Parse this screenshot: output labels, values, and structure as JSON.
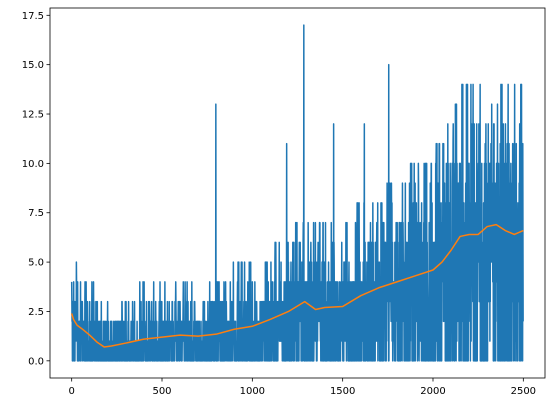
{
  "chart_data": {
    "type": "line",
    "title": "",
    "xlabel": "",
    "ylabel": "",
    "xlim": [
      -120,
      2620
    ],
    "ylim": [
      -0.87,
      17.87
    ],
    "x_ticks": [
      0,
      500,
      1000,
      1500,
      2000,
      2500
    ],
    "x_tick_labels": [
      "0",
      "500",
      "1000",
      "1500",
      "2000",
      "2500"
    ],
    "y_ticks": [
      0.0,
      2.5,
      5.0,
      7.5,
      10.0,
      12.5,
      15.0,
      17.5
    ],
    "y_tick_labels": [
      "0.0",
      "2.5",
      "5.0",
      "7.5",
      "10.0",
      "12.5",
      "15.0",
      "17.5"
    ],
    "grid": false,
    "legend": "none",
    "series": [
      {
        "color": "#1f77b4",
        "description": "raw per-episode values (integers), 2500 points, max 17 near x≈1285",
        "peaks": [
          [
            798,
            13
          ],
          [
            1285,
            17
          ],
          [
            1190,
            11
          ],
          [
            1450,
            12
          ],
          [
            1755,
            15
          ],
          [
            1620,
            12
          ],
          [
            2130,
            13
          ],
          [
            2160,
            14
          ],
          [
            2325,
            13
          ],
          [
            2490,
            14
          ]
        ]
      },
      {
        "color": "#ff7f0e",
        "description": "moving average",
        "x": [
          0,
          10,
          30,
          60,
          100,
          140,
          180,
          220,
          300,
          400,
          500,
          600,
          700,
          800,
          900,
          1000,
          1100,
          1200,
          1290,
          1350,
          1400,
          1500,
          1600,
          1700,
          1800,
          1900,
          2000,
          2050,
          2100,
          2150,
          2200,
          2250,
          2300,
          2350,
          2400,
          2450,
          2500
        ],
        "values": [
          2.4,
          2.1,
          1.8,
          1.6,
          1.3,
          0.95,
          0.7,
          0.75,
          0.9,
          1.1,
          1.2,
          1.3,
          1.25,
          1.35,
          1.6,
          1.75,
          2.1,
          2.5,
          3.0,
          2.6,
          2.7,
          2.75,
          3.3,
          3.7,
          4.0,
          4.3,
          4.6,
          5.0,
          5.6,
          6.3,
          6.4,
          6.4,
          6.8,
          6.9,
          6.6,
          6.4,
          6.6
        ]
      }
    ]
  }
}
